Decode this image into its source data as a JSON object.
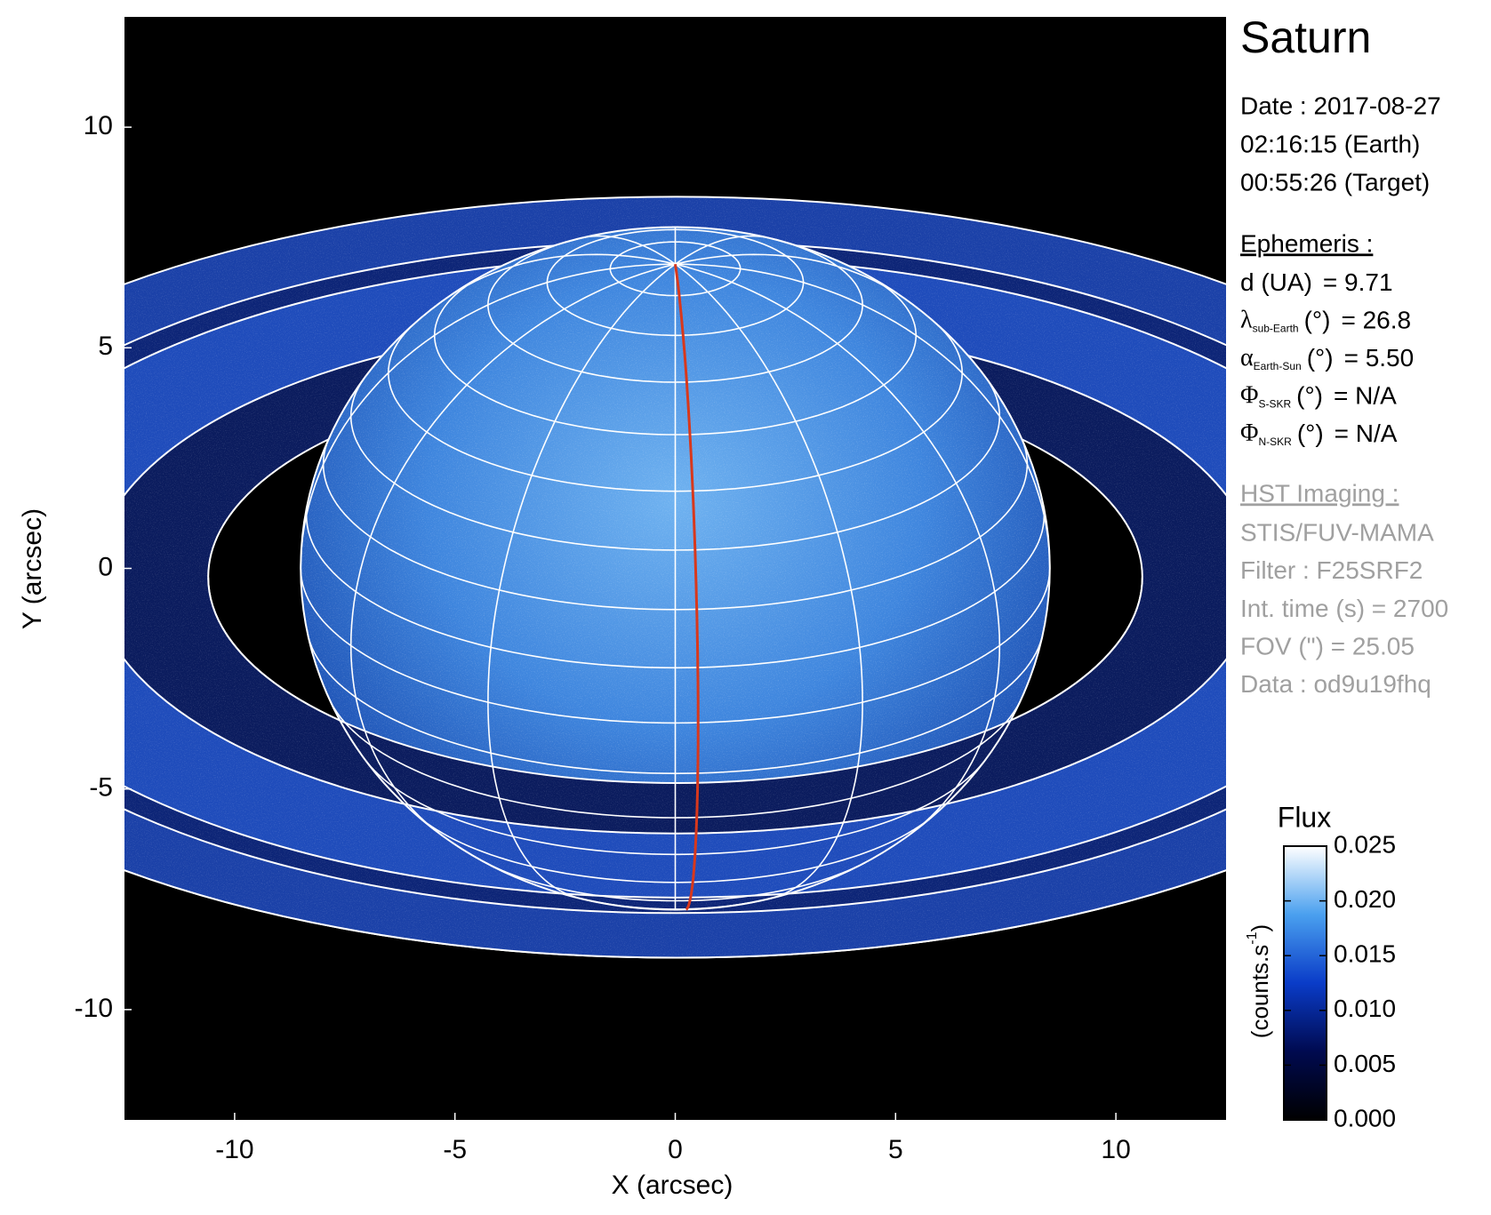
{
  "chart_data": {
    "type": "image",
    "title": "Saturn",
    "x_label": "X (arcsec)",
    "y_label": "Y (arcsec)",
    "xlim": [
      -12.5,
      12.5
    ],
    "ylim": [
      -12.5,
      12.5
    ],
    "xticks": [
      -10,
      -5,
      0,
      5,
      10
    ],
    "yticks": [
      -10,
      -5,
      0,
      5,
      10
    ],
    "date_lines": [
      "Date : 2017-08-27",
      "02:16:15 (Earth)",
      "00:55:26 (Target)"
    ],
    "ephemeris": {
      "heading": "Ephemeris :",
      "rows": [
        {
          "label": "d (UA)",
          "value": "= 9.71"
        },
        {
          "symbol": "λ",
          "sub": "sub-Earth",
          "label": "(°)",
          "value": "= 26.8"
        },
        {
          "symbol": "α",
          "sub": "Earth-Sun",
          "label": "(°)",
          "value": "= 5.50"
        },
        {
          "symbol": "Φ",
          "sub": "S-SKR",
          "label": "(°)",
          "value": "= N/A"
        },
        {
          "symbol": "Φ",
          "sub": "N-SKR",
          "label": "(°)",
          "value": "= N/A"
        }
      ]
    },
    "hst": {
      "heading": "HST Imaging :",
      "lines": [
        "STIS/FUV-MAMA",
        "Filter : F25SRF2",
        "Int. time (s) = 2700",
        "FOV (\") = 25.05",
        "Data : od9u19fhq"
      ]
    },
    "colorbar": {
      "title": "Flux",
      "label": "(counts.s",
      "label_sup": "-1",
      "label_end": ")",
      "lim": [
        0,
        0.025
      ],
      "ticks": [
        {
          "value": 0,
          "label": "0.000"
        },
        0.005,
        {
          "value": 0.01,
          "label": "0.010"
        },
        0.015,
        {
          "value": 0.02,
          "label": "0.020"
        },
        0.025
      ],
      "colors": [
        "#000000",
        "#000a50",
        "#0a3cc8",
        "#4aa0ef",
        "#ffffff"
      ]
    }
  }
}
